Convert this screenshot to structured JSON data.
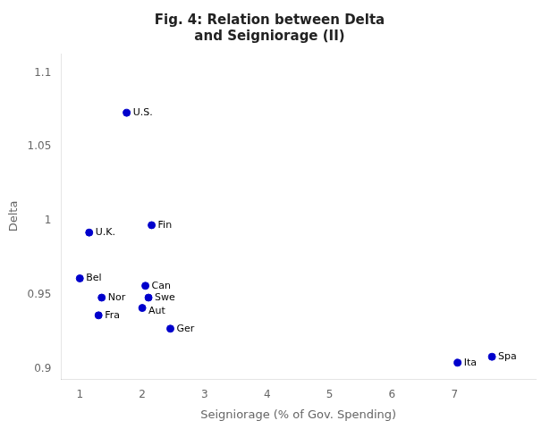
{
  "chart_data": {
    "type": "scatter",
    "title": "Fig. 4: Relation between Delta\nand Seigniorage (II)",
    "xlabel": "Seigniorage (% of Gov. Spending)",
    "ylabel": "Delta",
    "xlim": [
      0.7,
      8.3
    ],
    "ylim": [
      0.893,
      1.113
    ],
    "xticks": [
      1,
      2,
      3,
      4,
      5,
      6,
      7
    ],
    "yticks": [
      0.9,
      0.95,
      1,
      1.05,
      1.1
    ],
    "grid": false,
    "color": "#0000cc",
    "marker": "circle",
    "labels": [
      "U.S.",
      "U.K.",
      "Fin",
      "Bel",
      "Nor",
      "Can",
      "Swe",
      "Aut",
      "Fra",
      "Ger",
      "Ita",
      "Spa"
    ],
    "x": [
      1.75,
      1.15,
      2.15,
      1.0,
      1.35,
      2.05,
      2.1,
      2.0,
      1.3,
      2.45,
      7.05,
      7.6
    ],
    "values": [
      1.073,
      0.992,
      0.997,
      0.961,
      0.948,
      0.956,
      0.948,
      0.941,
      0.936,
      0.927,
      0.904,
      0.908
    ]
  }
}
